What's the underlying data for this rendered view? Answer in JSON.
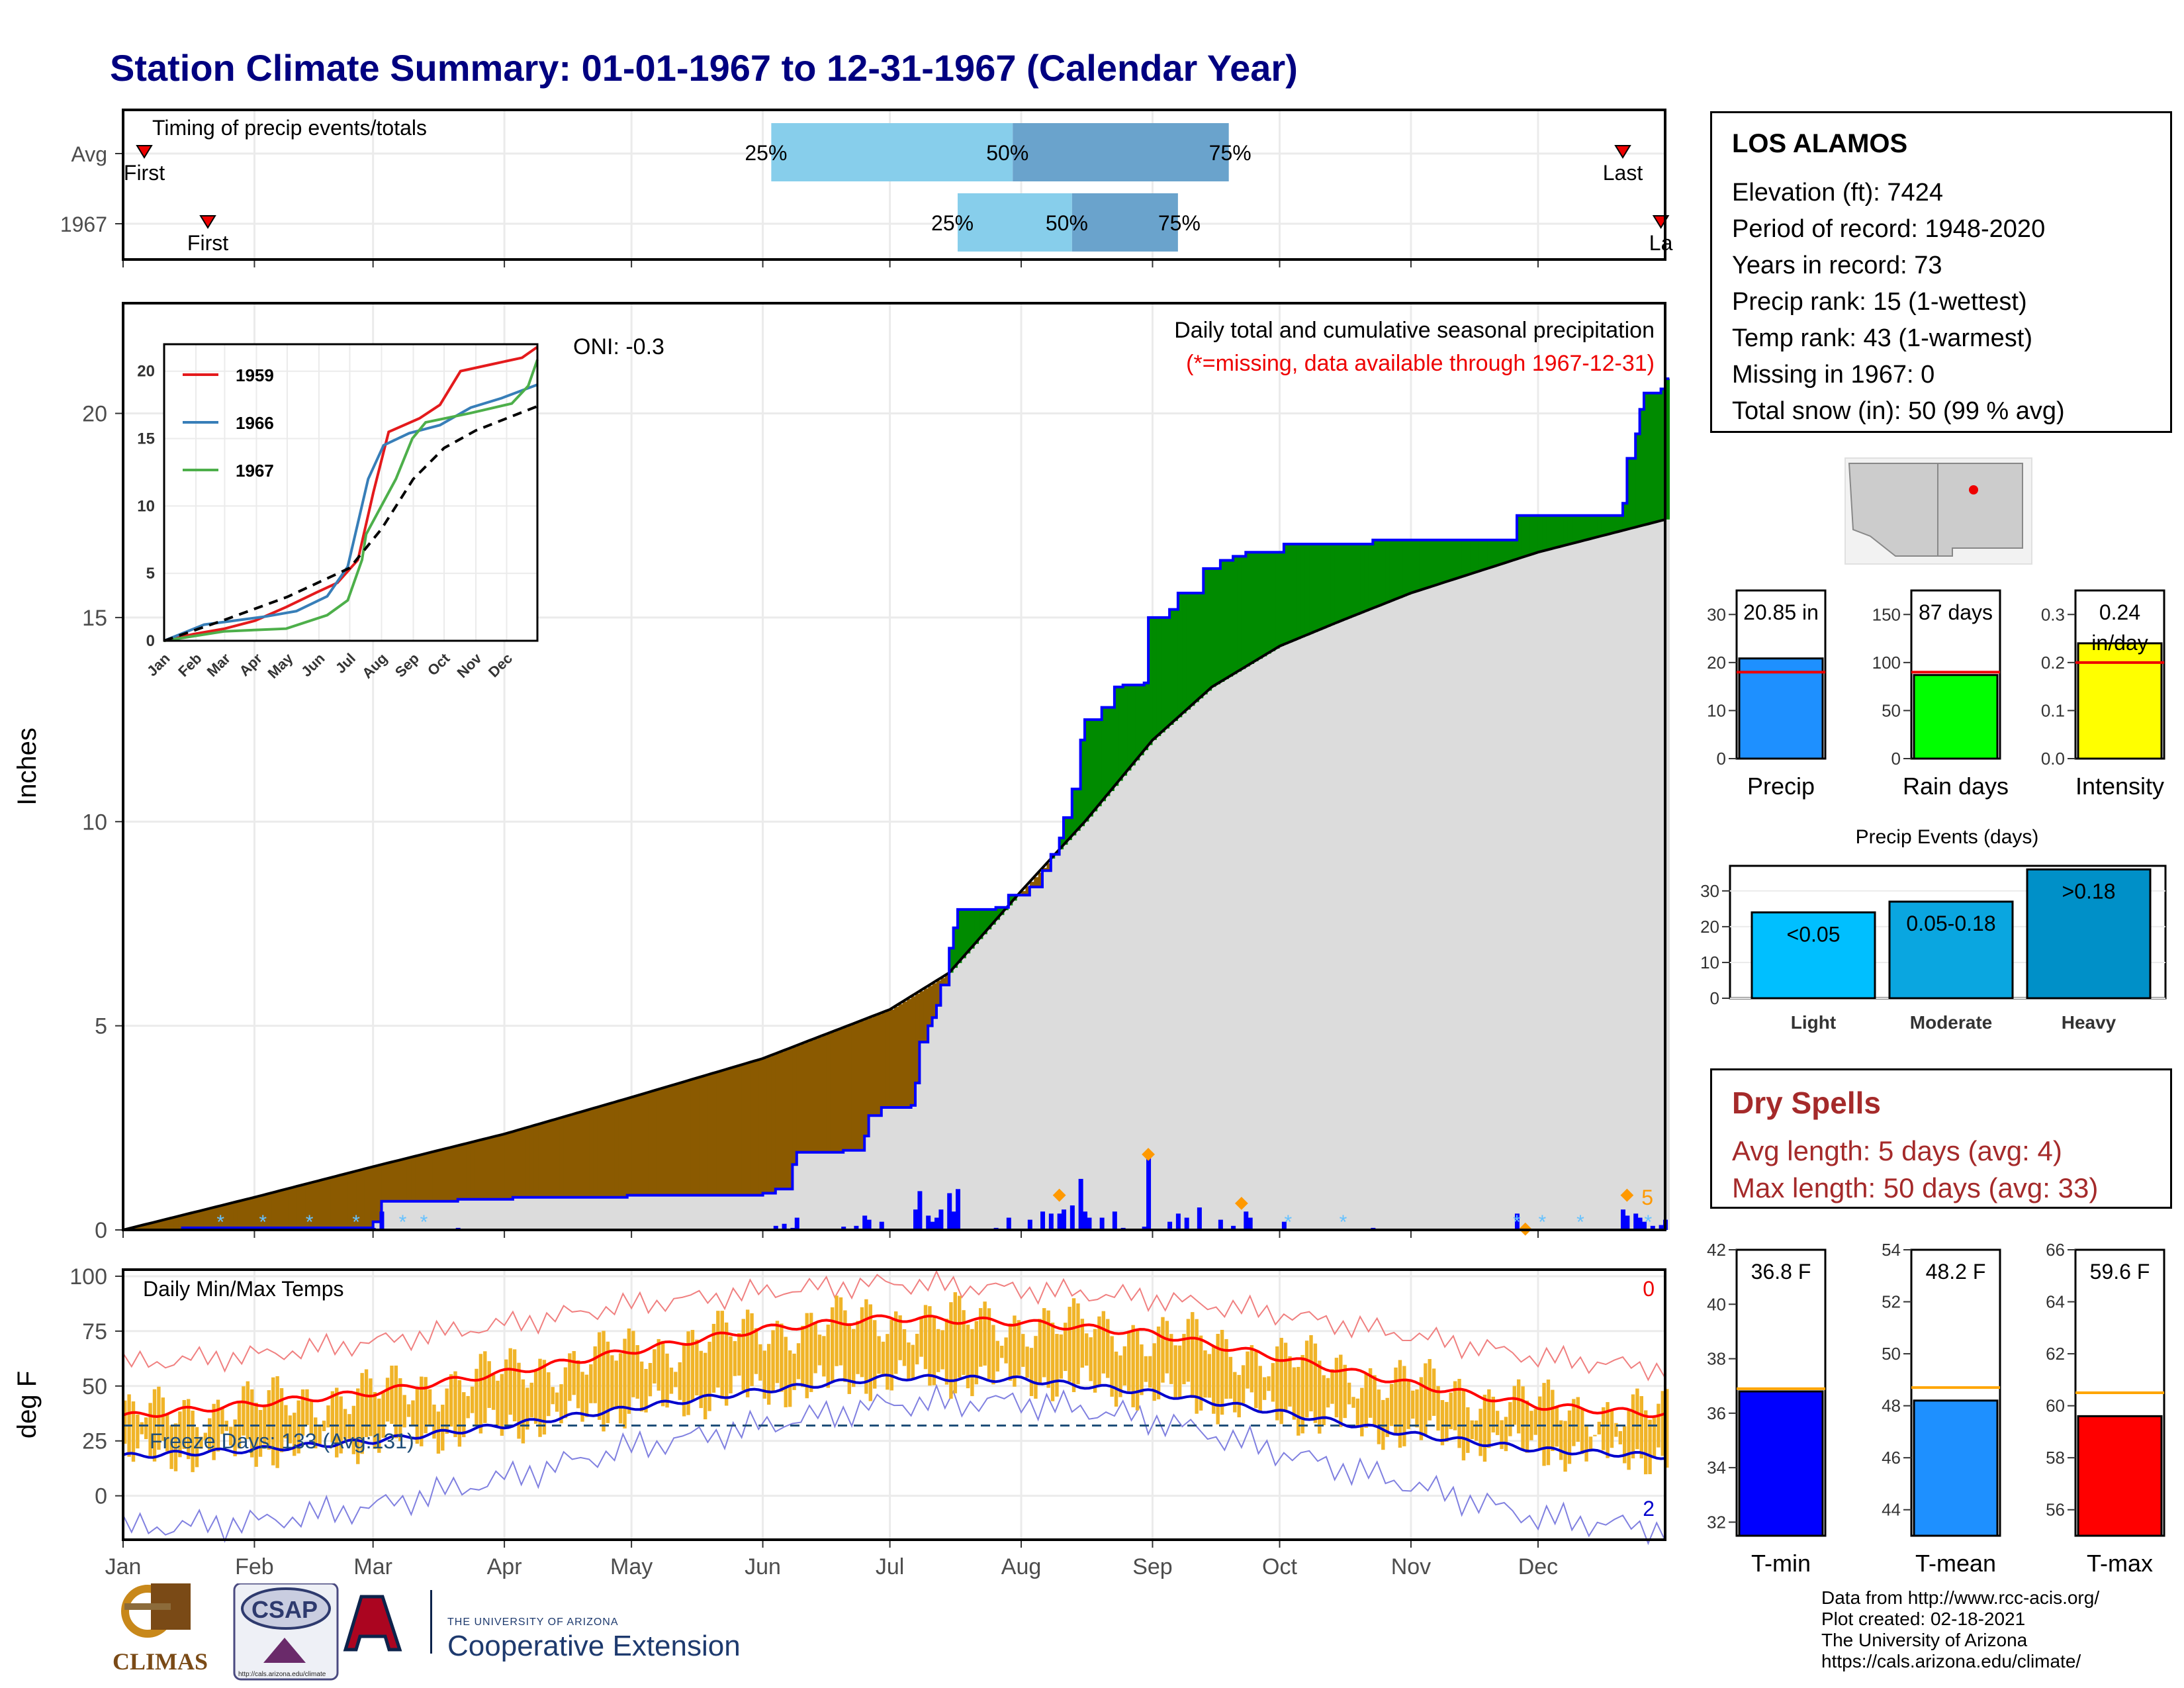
{
  "title": "Station Climate Summary: 01-01-1967 to 12-31-1967 (Calendar Year)",
  "station": {
    "name": "LOS ALAMOS",
    "lines": [
      "Elevation (ft): 7424",
      "Period of record: 1948-2020",
      "Years in record: 73",
      "Precip rank: 15 (1-wettest)",
      "Temp rank: 43 (1-warmest)",
      "Missing in 1967: 0",
      "Total snow (in): 50 (99 % avg)"
    ]
  },
  "dry_spells": {
    "heading": "Dry Spells",
    "avg": "Avg length: 5 days (avg: 4)",
    "max": "Max length: 50 days (avg: 33)"
  },
  "footer": [
    "Data from http://www.rcc-acis.org/",
    "Plot created: 02-18-2021",
    "The University of Arizona",
    "https://cals.arizona.edu/climate/"
  ],
  "logos": {
    "climas": "CLIMAS",
    "csap": "CSAP",
    "csap_url": "http://cals.arizona.edu/climate",
    "ua_small": "THE UNIVERSITY OF ARIZONA",
    "ua_big": "Cooperative Extension"
  },
  "colors": {
    "title": "#000080",
    "deficit": "#8b5a00",
    "surplus": "#008b00",
    "normal_fill": "#dcdcdc",
    "obs_line": "#0000ff",
    "tmax": "#ff0000",
    "tmin": "#0000cc",
    "bars": "#f0b428"
  },
  "chart_data": [
    {
      "type": "bar",
      "name": "timing",
      "title": "Timing of precip events/totals",
      "rows": [
        {
          "label": "Avg",
          "first": "First",
          "last": "Last",
          "q25_doy": 154,
          "q50_doy": 211,
          "q75_doy": 262,
          "first_doy": 6,
          "last_doy": 355,
          "q_labels": [
            "25%",
            "50%",
            "75%"
          ]
        },
        {
          "label": "1967",
          "first": "First",
          "last": "La",
          "q25_doy": 198,
          "q50_doy": 225,
          "q75_doy": 250,
          "first_doy": 21,
          "last_doy": 364,
          "q_labels": [
            "25%",
            "50%",
            "75%"
          ]
        }
      ]
    },
    {
      "type": "area",
      "name": "cumulative_precip",
      "title": "Daily total and cumulative seasonal precipitation",
      "subtitle": "(*=missing, data available through 1967-12-31)",
      "oni": "ONI: -0.3",
      "ylabel": "Inches",
      "ylim": [
        0,
        22.7
      ],
      "yticks": [
        0,
        5,
        10,
        15,
        20
      ],
      "months": [
        "Jan",
        "Feb",
        "Mar",
        "Apr",
        "May",
        "Jun",
        "Jul",
        "Aug",
        "Sep",
        "Oct",
        "Nov",
        "Dec"
      ],
      "extreme_count": "5",
      "normal_cum": [
        [
          1,
          0
        ],
        [
          32,
          0.8
        ],
        [
          60,
          1.55
        ],
        [
          91,
          2.35
        ],
        [
          121,
          3.25
        ],
        [
          152,
          4.2
        ],
        [
          182,
          5.4
        ],
        [
          196,
          6.3
        ],
        [
          213,
          8.3
        ],
        [
          228,
          10.0
        ],
        [
          244,
          12.0
        ],
        [
          258,
          13.3
        ],
        [
          274,
          14.3
        ],
        [
          288,
          14.9
        ],
        [
          305,
          15.6
        ],
        [
          335,
          16.6
        ],
        [
          365,
          17.4
        ]
      ],
      "observed_cum": [
        [
          1,
          0
        ],
        [
          15,
          0.05
        ],
        [
          60,
          0.2
        ],
        [
          62,
          0.7
        ],
        [
          80,
          0.75
        ],
        [
          93,
          0.8
        ],
        [
          120,
          0.85
        ],
        [
          152,
          0.9
        ],
        [
          155,
          1.0
        ],
        [
          159,
          1.6
        ],
        [
          160,
          1.9
        ],
        [
          171,
          1.95
        ],
        [
          176,
          2.3
        ],
        [
          177,
          2.8
        ],
        [
          180,
          3.0
        ],
        [
          187,
          3.05
        ],
        [
          188,
          3.6
        ],
        [
          189,
          4.6
        ],
        [
          191,
          5.0
        ],
        [
          192,
          5.2
        ],
        [
          193,
          5.5
        ],
        [
          194,
          6.0
        ],
        [
          196,
          6.9
        ],
        [
          197,
          7.4
        ],
        [
          198,
          7.85
        ],
        [
          207,
          7.9
        ],
        [
          210,
          8.2
        ],
        [
          215,
          8.4
        ],
        [
          218,
          8.8
        ],
        [
          220,
          9.2
        ],
        [
          222,
          9.6
        ],
        [
          223,
          10.1
        ],
        [
          225,
          10.8
        ],
        [
          227,
          12.0
        ],
        [
          228,
          12.5
        ],
        [
          232,
          12.8
        ],
        [
          235,
          13.3
        ],
        [
          237,
          13.35
        ],
        [
          242,
          13.4
        ],
        [
          243,
          15.0
        ],
        [
          248,
          15.2
        ],
        [
          250,
          15.6
        ],
        [
          256,
          16.2
        ],
        [
          260,
          16.4
        ],
        [
          263,
          16.5
        ],
        [
          266,
          16.6
        ],
        [
          275,
          16.8
        ],
        [
          296,
          16.9
        ],
        [
          330,
          17.5
        ],
        [
          355,
          17.8
        ],
        [
          356,
          18.9
        ],
        [
          358,
          19.5
        ],
        [
          359,
          20.1
        ],
        [
          360,
          20.5
        ],
        [
          364,
          20.6
        ],
        [
          365,
          20.85
        ]
      ],
      "daily_precip": [
        [
          15,
          0.02
        ],
        [
          33,
          0.03
        ],
        [
          60,
          0.05
        ],
        [
          62,
          0.45
        ],
        [
          80,
          0.05
        ],
        [
          93,
          0.03
        ],
        [
          160,
          0.3
        ],
        [
          155,
          0.1
        ],
        [
          157,
          0.15
        ],
        [
          159,
          0.05
        ],
        [
          171,
          0.08
        ],
        [
          174,
          0.1
        ],
        [
          176,
          0.35
        ],
        [
          177,
          0.25
        ],
        [
          180,
          0.2
        ],
        [
          187,
          0.03
        ],
        [
          188,
          0.5
        ],
        [
          189,
          0.95
        ],
        [
          191,
          0.35
        ],
        [
          192,
          0.2
        ],
        [
          193,
          0.3
        ],
        [
          194,
          0.5
        ],
        [
          196,
          0.9
        ],
        [
          197,
          0.45
        ],
        [
          198,
          1.0
        ],
        [
          207,
          0.05
        ],
        [
          210,
          0.3
        ],
        [
          215,
          0.25
        ],
        [
          218,
          0.45
        ],
        [
          220,
          0.4
        ],
        [
          222,
          0.4
        ],
        [
          223,
          0.5
        ],
        [
          225,
          0.6
        ],
        [
          227,
          1.25
        ],
        [
          228,
          0.45
        ],
        [
          229,
          0.3
        ],
        [
          232,
          0.3
        ],
        [
          235,
          0.45
        ],
        [
          237,
          0.05
        ],
        [
          242,
          0.08
        ],
        [
          243,
          1.8
        ],
        [
          248,
          0.2
        ],
        [
          250,
          0.4
        ],
        [
          252,
          0.3
        ],
        [
          255,
          0.55
        ],
        [
          260,
          0.25
        ],
        [
          263,
          0.1
        ],
        [
          266,
          0.45
        ],
        [
          267,
          0.3
        ],
        [
          275,
          0.2
        ],
        [
          296,
          0.05
        ],
        [
          330,
          0.4
        ],
        [
          355,
          0.5
        ],
        [
          356,
          0.35
        ],
        [
          358,
          0.4
        ],
        [
          359,
          0.3
        ],
        [
          360,
          0.2
        ],
        [
          362,
          0.1
        ],
        [
          364,
          0.12
        ],
        [
          365,
          0.25
        ]
      ],
      "extreme_markers": [
        [
          243,
          1.85
        ],
        [
          222,
          0.85
        ],
        [
          265,
          0.65
        ],
        [
          332,
          0.02
        ],
        [
          356,
          0.85
        ]
      ],
      "snow_markers": [
        24,
        34,
        45,
        56,
        67,
        72,
        276,
        289,
        330,
        336,
        345,
        361
      ]
    },
    {
      "type": "line",
      "name": "inset_cumulative",
      "legend": [
        "1959",
        "1966",
        "1967"
      ],
      "legend_colors": [
        "#e41a1c",
        "#377eb8",
        "#4daf4a"
      ],
      "ylim": [
        0,
        22
      ],
      "yticks": [
        0,
        5,
        10,
        15,
        20
      ],
      "months": [
        "Jan",
        "Feb",
        "Mar",
        "Apr",
        "May",
        "Jun",
        "Jul",
        "Aug",
        "Sep",
        "Oct",
        "Nov",
        "Dec"
      ],
      "series": [
        {
          "name": "1959",
          "points": [
            [
              1,
              0
            ],
            [
              30,
              0.5
            ],
            [
              60,
              0.9
            ],
            [
              90,
              1.5
            ],
            [
              120,
              2.5
            ],
            [
              150,
              3.6
            ],
            [
              170,
              4.3
            ],
            [
              190,
              6.0
            ],
            [
              205,
              11.0
            ],
            [
              220,
              15.5
            ],
            [
              250,
              16.5
            ],
            [
              270,
              17.5
            ],
            [
              290,
              20.0
            ],
            [
              320,
              20.5
            ],
            [
              350,
              21.0
            ],
            [
              365,
              21.8
            ]
          ]
        },
        {
          "name": "1966",
          "points": [
            [
              1,
              0
            ],
            [
              40,
              1.2
            ],
            [
              70,
              1.5
            ],
            [
              100,
              1.8
            ],
            [
              130,
              2.2
            ],
            [
              160,
              3.3
            ],
            [
              180,
              5.5
            ],
            [
              200,
              12.0
            ],
            [
              215,
              14.5
            ],
            [
              240,
              15.4
            ],
            [
              270,
              16.0
            ],
            [
              300,
              17.3
            ],
            [
              330,
              18.0
            ],
            [
              365,
              19.0
            ]
          ]
        },
        {
          "name": "1967",
          "points": [
            [
              1,
              0
            ],
            [
              60,
              0.7
            ],
            [
              120,
              0.9
            ],
            [
              160,
              1.9
            ],
            [
              180,
              3.0
            ],
            [
              194,
              6.0
            ],
            [
              198,
              7.9
            ],
            [
              227,
              12.0
            ],
            [
              243,
              15.0
            ],
            [
              256,
              16.2
            ],
            [
              300,
              16.9
            ],
            [
              340,
              17.6
            ],
            [
              356,
              18.9
            ],
            [
              365,
              20.85
            ]
          ]
        },
        {
          "name": "normal",
          "points": [
            [
              1,
              0
            ],
            [
              60,
              1.55
            ],
            [
              121,
              3.25
            ],
            [
              182,
              5.4
            ],
            [
              213,
              8.3
            ],
            [
              244,
              12.0
            ],
            [
              274,
              14.3
            ],
            [
              305,
              15.6
            ],
            [
              365,
              17.4
            ]
          ]
        }
      ]
    },
    {
      "type": "bar",
      "name": "daily_temps",
      "title": "Daily Min/Max Temps",
      "ylabel": "deg F",
      "ylim": [
        -20,
        103
      ],
      "yticks": [
        0,
        25,
        50,
        75,
        100
      ],
      "months": [
        "Jan",
        "Feb",
        "Mar",
        "Apr",
        "May",
        "Jun",
        "Jul",
        "Aug",
        "Sep",
        "Oct",
        "Nov",
        "Dec"
      ],
      "freeze_label": "Freeze Days: 133 (Avg:131)",
      "freeze_line": 32,
      "record_high_count": "0",
      "record_low_count": "2",
      "normal_max": [
        [
          1,
          36
        ],
        [
          32,
          42
        ],
        [
          60,
          47
        ],
        [
          91,
          56
        ],
        [
          121,
          66
        ],
        [
          152,
          76
        ],
        [
          182,
          81
        ],
        [
          213,
          79
        ],
        [
          244,
          74
        ],
        [
          274,
          63
        ],
        [
          305,
          51
        ],
        [
          335,
          41
        ],
        [
          365,
          37
        ]
      ],
      "normal_min": [
        [
          1,
          18
        ],
        [
          32,
          21
        ],
        [
          60,
          25
        ],
        [
          91,
          32
        ],
        [
          121,
          40
        ],
        [
          152,
          48
        ],
        [
          182,
          54
        ],
        [
          213,
          53
        ],
        [
          244,
          47
        ],
        [
          274,
          38
        ],
        [
          305,
          28
        ],
        [
          335,
          21
        ],
        [
          365,
          18
        ]
      ],
      "record_max": [
        [
          1,
          60
        ],
        [
          32,
          64
        ],
        [
          60,
          70
        ],
        [
          91,
          78
        ],
        [
          121,
          87
        ],
        [
          152,
          93
        ],
        [
          182,
          97
        ],
        [
          213,
          94
        ],
        [
          244,
          90
        ],
        [
          274,
          83
        ],
        [
          305,
          73
        ],
        [
          335,
          63
        ],
        [
          365,
          58
        ]
      ],
      "record_min": [
        [
          1,
          -15
        ],
        [
          32,
          -12
        ],
        [
          60,
          -5
        ],
        [
          91,
          8
        ],
        [
          121,
          22
        ],
        [
          152,
          32
        ],
        [
          182,
          42
        ],
        [
          213,
          43
        ],
        [
          244,
          35
        ],
        [
          274,
          20
        ],
        [
          305,
          5
        ],
        [
          335,
          -10
        ],
        [
          365,
          -15
        ]
      ]
    },
    {
      "type": "bar",
      "name": "annual_precip",
      "categories": [
        "Precip",
        "Rain days",
        "Intensity"
      ],
      "values": [
        20.85,
        87,
        0.24
      ],
      "labels": [
        "20.85 in",
        "87 days",
        "0.24 in/day"
      ],
      "averages": [
        18.0,
        90,
        0.2
      ],
      "ylims": [
        [
          0,
          35
        ],
        [
          0,
          175
        ],
        [
          0,
          0.35
        ]
      ],
      "yticks": [
        [
          0,
          10,
          20,
          30
        ],
        [
          0,
          50,
          100,
          150
        ],
        [
          0.0,
          0.1,
          0.2,
          0.3
        ]
      ],
      "colors": [
        "#1e90ff",
        "#00ff00",
        "#ffff00"
      ]
    },
    {
      "type": "bar",
      "name": "precip_events",
      "title": "Precip Events (days)",
      "categories": [
        "Light",
        "Moderate",
        "Heavy"
      ],
      "values": [
        24,
        27,
        36
      ],
      "labels": [
        "<0.05",
        "0.05-0.18",
        ">0.18"
      ],
      "ylim": [
        0,
        37
      ],
      "yticks": [
        0,
        10,
        20,
        30
      ],
      "colors": [
        "#00bfff",
        "#0aa6e0",
        "#0090c8"
      ]
    },
    {
      "type": "bar",
      "name": "annual_temps",
      "categories": [
        "T-min",
        "T-mean",
        "T-max"
      ],
      "values": [
        36.8,
        48.2,
        59.6
      ],
      "labels": [
        "36.8 F",
        "48.2 F",
        "59.6 F"
      ],
      "averages": [
        36.9,
        48.7,
        60.5
      ],
      "ylims": [
        [
          31.5,
          42
        ],
        [
          43,
          54
        ],
        [
          55,
          66
        ]
      ],
      "yticks": [
        [
          32,
          34,
          36,
          38,
          40,
          42
        ],
        [
          44,
          46,
          48,
          50,
          52,
          54
        ],
        [
          56,
          58,
          60,
          62,
          64,
          66
        ]
      ],
      "colors": [
        "#0000ff",
        "#1e90ff",
        "#ff0000"
      ]
    }
  ]
}
